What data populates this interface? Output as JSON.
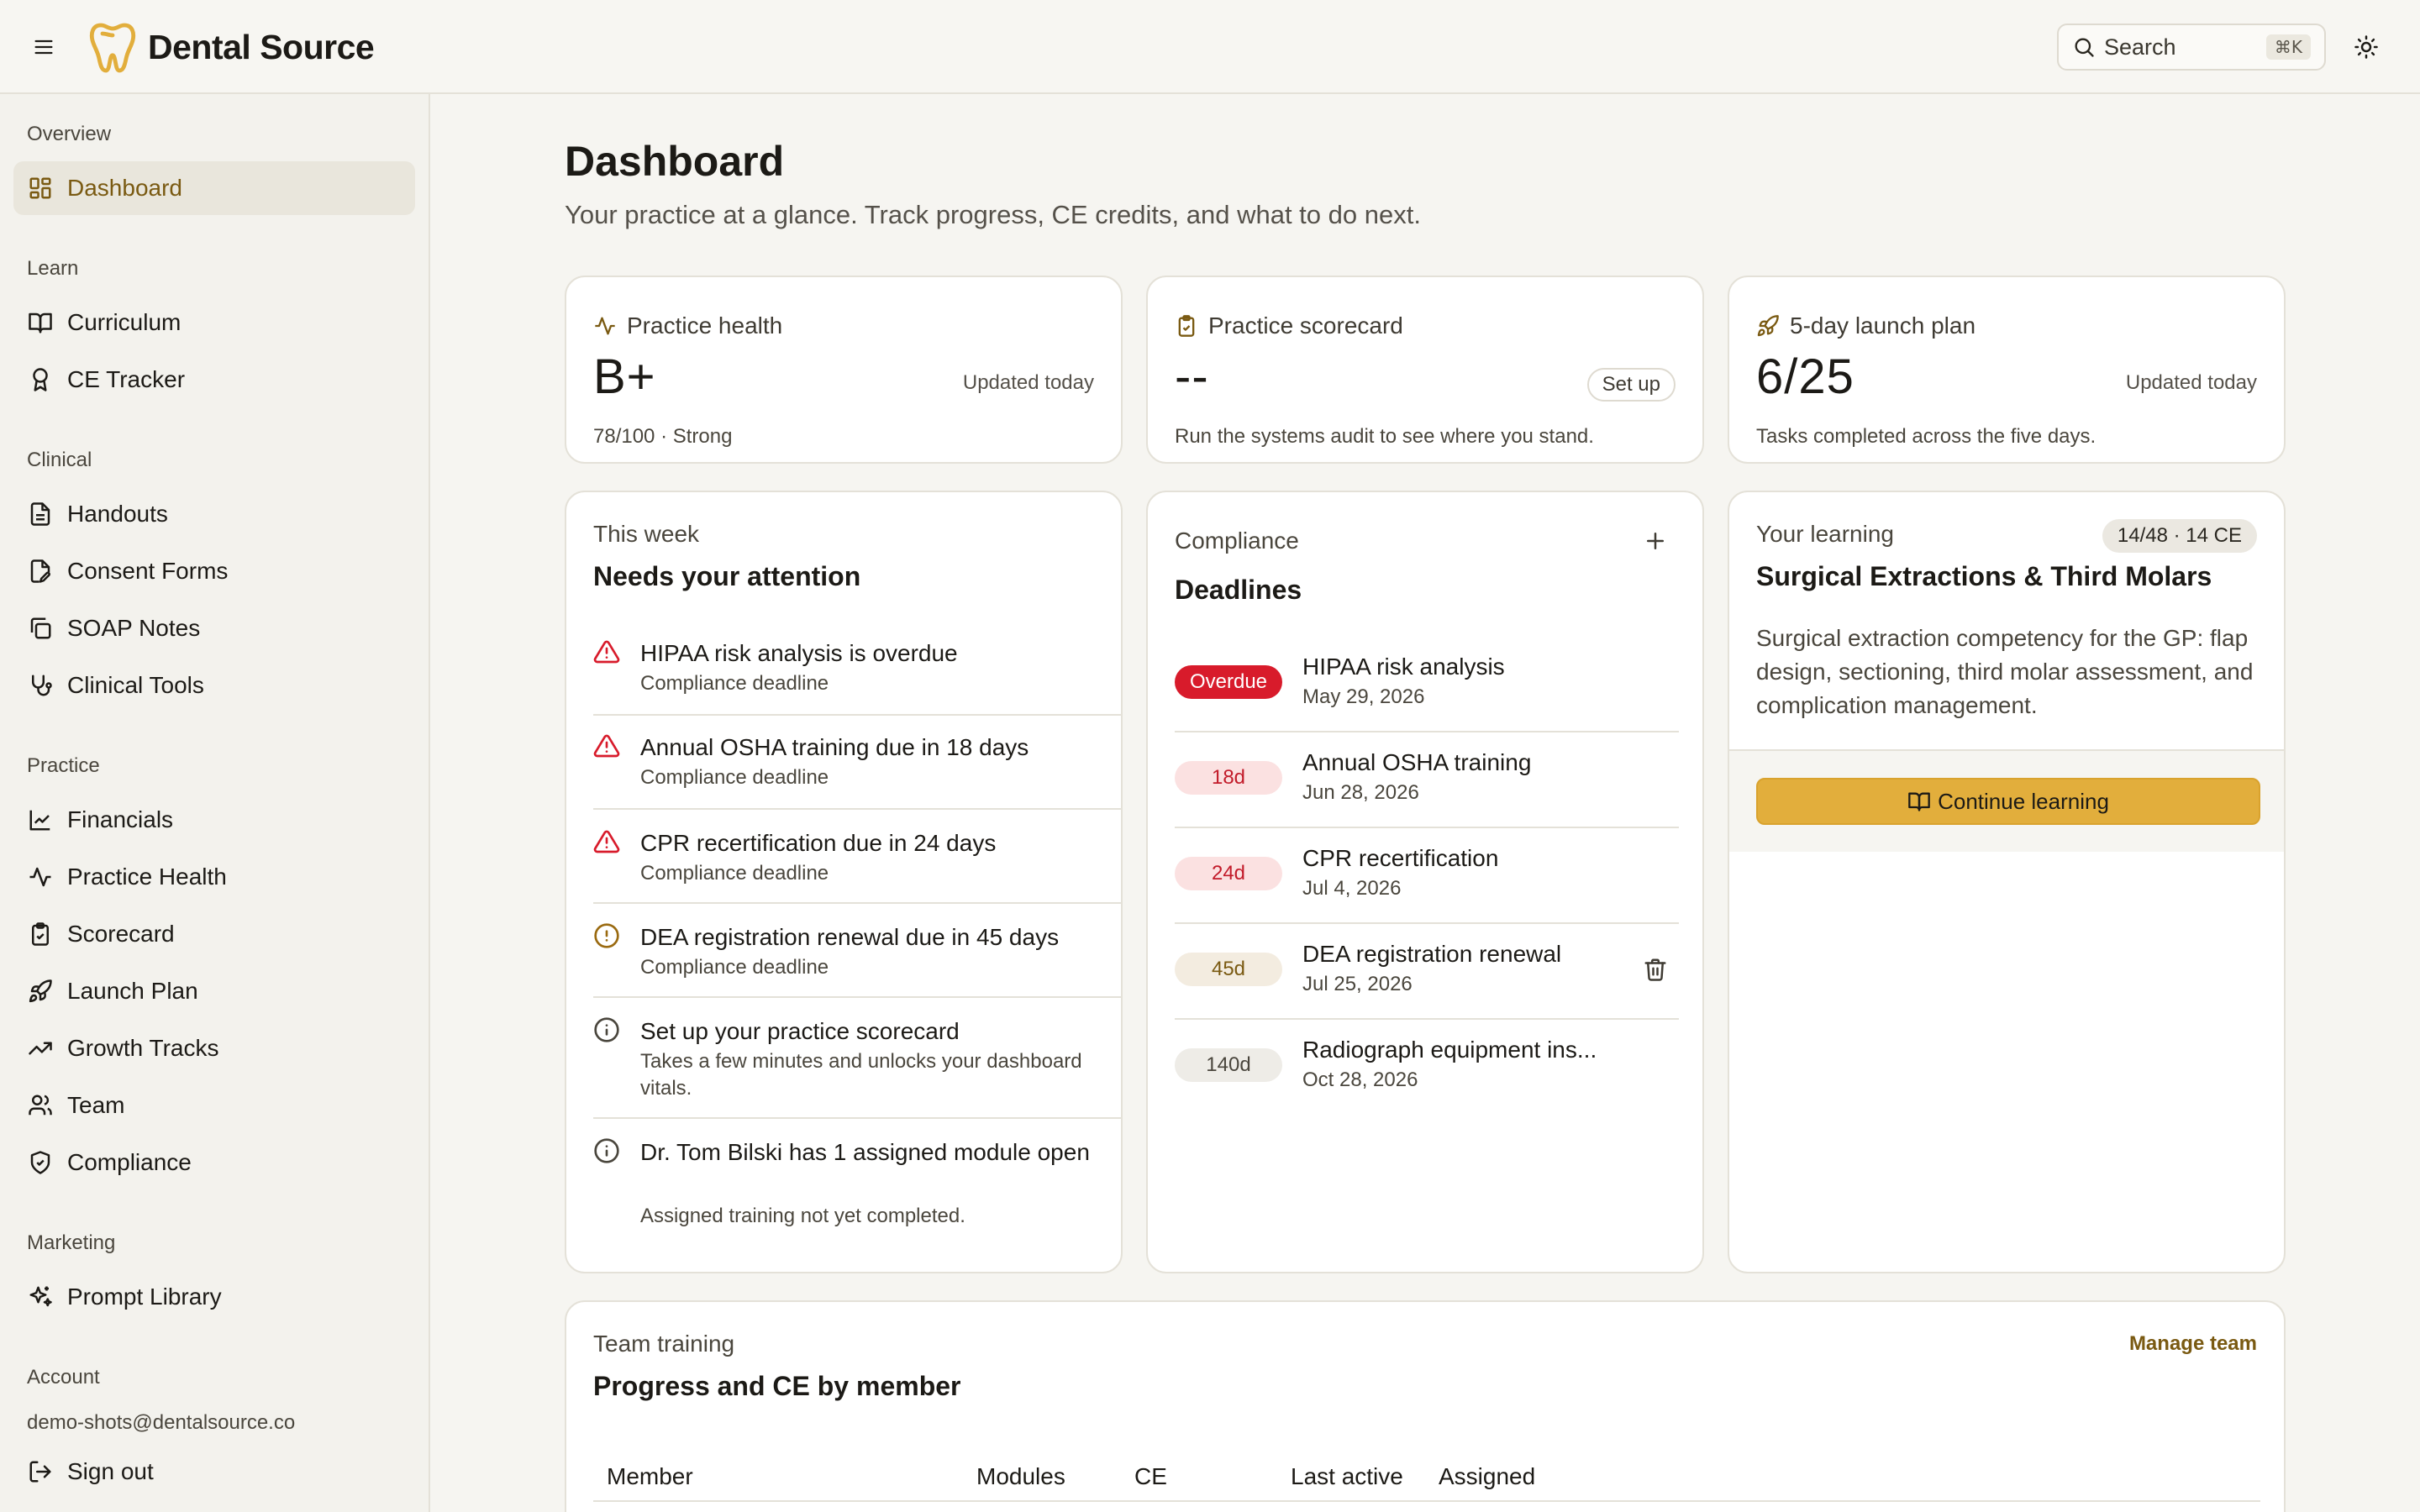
{
  "header": {
    "brand": "Dental Source",
    "search_placeholder": "Search",
    "search_shortcut": "⌘K"
  },
  "sidebar": {
    "sections": [
      {
        "label": "Overview",
        "items": [
          {
            "label": "Dashboard",
            "icon": "dashboard-icon",
            "active": true
          }
        ]
      },
      {
        "label": "Learn",
        "items": [
          {
            "label": "Curriculum",
            "icon": "book-icon"
          },
          {
            "label": "CE Tracker",
            "icon": "award-icon"
          }
        ]
      },
      {
        "label": "Clinical",
        "items": [
          {
            "label": "Handouts",
            "icon": "file-text-icon"
          },
          {
            "label": "Consent Forms",
            "icon": "file-signature-icon"
          },
          {
            "label": "SOAP Notes",
            "icon": "copy-icon"
          },
          {
            "label": "Clinical Tools",
            "icon": "stethoscope-icon"
          }
        ]
      },
      {
        "label": "Practice",
        "items": [
          {
            "label": "Financials",
            "icon": "line-chart-icon"
          },
          {
            "label": "Practice Health",
            "icon": "activity-icon"
          },
          {
            "label": "Scorecard",
            "icon": "clipboard-check-icon"
          },
          {
            "label": "Launch Plan",
            "icon": "rocket-icon"
          },
          {
            "label": "Growth Tracks",
            "icon": "trending-up-icon"
          },
          {
            "label": "Team",
            "icon": "users-icon"
          },
          {
            "label": "Compliance",
            "icon": "shield-check-icon"
          }
        ]
      },
      {
        "label": "Marketing",
        "items": [
          {
            "label": "Prompt Library",
            "icon": "sparkles-icon"
          }
        ]
      },
      {
        "label": "Account",
        "email": "demo-shots@dentalsource.co",
        "items": [
          {
            "label": "Sign out",
            "icon": "log-out-icon"
          }
        ]
      }
    ]
  },
  "main": {
    "title": "Dashboard",
    "subtitle": "Your practice at a glance. Track progress, CE credits, and what to do next."
  },
  "stats": {
    "health": {
      "label": "Practice health",
      "value": "B+",
      "meta": "Updated today",
      "desc": "78/100 · Strong"
    },
    "scorecard": {
      "label": "Practice scorecard",
      "value": "--",
      "button": "Set up",
      "desc": "Run the systems audit to see where you stand."
    },
    "launch": {
      "label": "5-day launch plan",
      "value": "6/25",
      "meta": "Updated today",
      "desc": "Tasks completed across the five days."
    }
  },
  "attention": {
    "eyebrow": "This week",
    "title": "Needs your attention",
    "items": [
      {
        "title": "HIPAA risk analysis is overdue",
        "sub": "Compliance deadline",
        "level": "danger"
      },
      {
        "title": "Annual OSHA training due in 18 days",
        "sub": "Compliance deadline",
        "level": "danger"
      },
      {
        "title": "CPR recertification due in 24 days",
        "sub": "Compliance deadline",
        "level": "danger"
      },
      {
        "title": "DEA registration renewal due in 45 days",
        "sub": "Compliance deadline",
        "level": "warning"
      },
      {
        "title": "Set up your practice scorecard",
        "sub": "Takes a few minutes and unlocks your dashboard vitals.",
        "level": "info"
      },
      {
        "title": "Dr. Tom Bilski has 1 assigned module open",
        "sub": "Assigned training not yet completed.",
        "level": "info"
      }
    ]
  },
  "deadlines": {
    "eyebrow": "Compliance",
    "title": "Deadlines",
    "items": [
      {
        "badge": "Overdue",
        "kind": "overdue",
        "name": "HIPAA risk analysis",
        "date": "May 29, 2026"
      },
      {
        "badge": "18d",
        "kind": "soon",
        "name": "Annual OSHA training",
        "date": "Jun 28, 2026"
      },
      {
        "badge": "24d",
        "kind": "soon",
        "name": "CPR recertification",
        "date": "Jul 4, 2026"
      },
      {
        "badge": "45d",
        "kind": "mid",
        "name": "DEA registration renewal",
        "date": "Jul 25, 2026"
      },
      {
        "badge": "140d",
        "kind": "far",
        "name": "Radiograph equipment ins...",
        "date": "Oct 28, 2026"
      }
    ]
  },
  "learning": {
    "eyebrow": "Your learning",
    "progress": "14/48 · 14 CE",
    "title": "Surgical Extractions & Third Molars",
    "desc": "Surgical extraction competency for the GP: flap design, sectioning, third molar assessment, and complication management.",
    "cta": "Continue learning"
  },
  "team": {
    "eyebrow": "Team training",
    "title": "Progress and CE by member",
    "link": "Manage team",
    "columns": [
      "Member",
      "Modules",
      "CE",
      "Last active",
      "Assigned"
    ]
  },
  "colors": {
    "accent": "#e2ae3c",
    "accent_text": "#7a5a12",
    "danger": "#d81b2b",
    "background": "#f6f5f1"
  }
}
